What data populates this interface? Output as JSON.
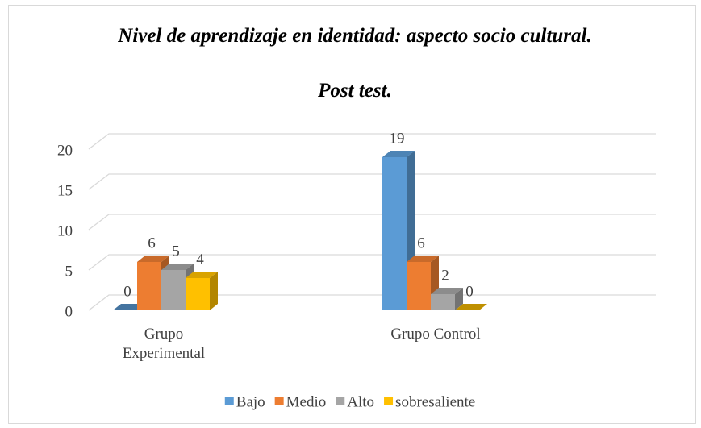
{
  "chart_data": {
    "type": "bar3d",
    "title": "Nivel de aprendizaje en identidad: aspecto socio cultural.",
    "subtitle": "Post test.",
    "categories": [
      "Grupo Experimental",
      "Grupo Control"
    ],
    "series": [
      {
        "name": "Bajo",
        "color": "#5b9bd5",
        "values": [
          0,
          19
        ]
      },
      {
        "name": "Medio",
        "color": "#ed7d31",
        "values": [
          6,
          6
        ]
      },
      {
        "name": "Alto",
        "color": "#a5a5a5",
        "values": [
          5,
          2
        ]
      },
      {
        "name": "sobresaliente",
        "color": "#ffc000",
        "values": [
          4,
          0
        ]
      }
    ],
    "ylim": [
      0,
      20
    ],
    "yticks": [
      0,
      5,
      10,
      15,
      20
    ],
    "grid": true,
    "legend": "bottom"
  }
}
